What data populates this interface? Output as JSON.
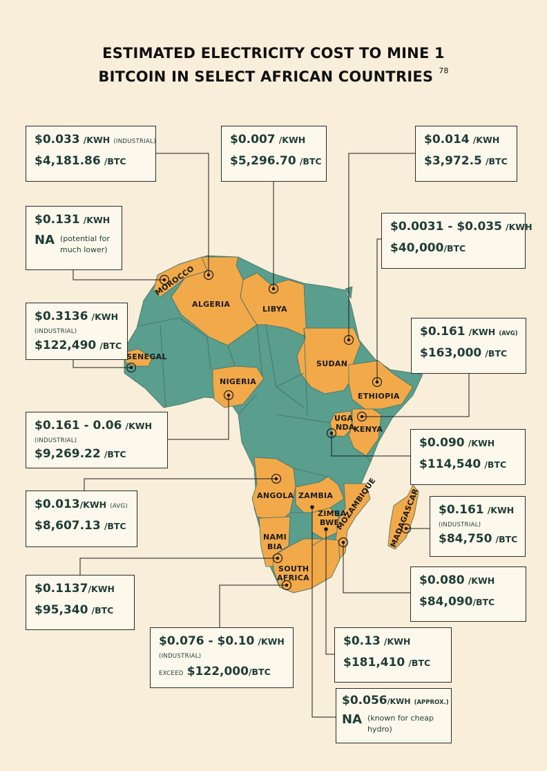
{
  "title": {
    "line1": "ESTIMATED ELECTRICITY COST TO MINE 1",
    "line2": "BITCOIN IN SELECT AFRICAN COUNTRIES",
    "footnote": "78"
  },
  "colors": {
    "background": "#f8eeda",
    "highlight": "#f2a94a",
    "other": "#5a9e8d",
    "box": "#fdf8ec"
  },
  "countries": {
    "morocco": "MOROCCO",
    "algeria": "ALGERIA",
    "libya": "LIBYA",
    "sudan": "SUDAN",
    "ethiopia": "ETHIOPIA",
    "senegal": "SENEGAL",
    "nigeria": "NIGERIA",
    "uganda_1": "UGA",
    "uganda_2": "NDA",
    "kenya": "KENYA",
    "angola": "ANGOLA",
    "zambia": "ZAMBIA",
    "zimbabwe_1": "ZIMBA",
    "zimbabwe_2": "BWE",
    "mozambique": "MOZAMBIQUE",
    "madagascar": "MADAGASCAR",
    "namibia_1": "NAMI",
    "namibia_2": "BIA",
    "south_africa_1": "SOUTH",
    "south_africa_2": "AFRICA"
  },
  "callouts": {
    "algeria": {
      "price": "$0.033",
      "unit": "/KWH",
      "qualifier": "(INDUSTRIAL)",
      "cost": "$4,181.86",
      "cost_unit": "/BTC"
    },
    "libya": {
      "price": "$0.007",
      "unit": "/KWH",
      "cost": "$5,296.70",
      "cost_unit": "/BTC"
    },
    "sudan": {
      "price": "$0.014",
      "unit": "/KWH",
      "cost": "$3,972.5",
      "cost_unit": "/BTC"
    },
    "morocco": {
      "price": "$0.131",
      "unit": "/KWH",
      "cost": "NA",
      "note": "(potential for much lower)"
    },
    "ethiopia": {
      "price": "$0.0031 - $0.035",
      "unit": "/KWH",
      "cost": "$40,000",
      "cost_unit": "/BTC"
    },
    "senegal": {
      "price": "$0.3136",
      "unit": "/KWH",
      "qualifier": "(INDUSTRIAL)",
      "cost": "$122,490",
      "cost_unit": "/BTC"
    },
    "kenya": {
      "price": "$0.161",
      "unit": "/KWH",
      "qualifier": "(AVG)",
      "cost": "$163,000",
      "cost_unit": "/BTC"
    },
    "nigeria": {
      "price": "$0.161 - 0.06",
      "unit": "/KWH",
      "qualifier": "(INDUSTRIAL)",
      "cost": "$9,269.22",
      "cost_unit": "/BTC"
    },
    "uganda": {
      "price": "$0.090",
      "unit": "/KWH",
      "cost": "$114,540",
      "cost_unit": "/BTC"
    },
    "angola": {
      "price": "$0.013",
      "unit": "/KWH",
      "qualifier": "(AVG)",
      "cost": "$8,607.13",
      "cost_unit": "/BTC"
    },
    "madagascar": {
      "price": "$0.161",
      "unit": "/KWH",
      "qualifier": "(INDUSTRIAL)",
      "cost": "$84,750",
      "cost_unit": "/BTC"
    },
    "namibia": {
      "price": "$0.1137",
      "unit": "/KWH",
      "cost": "$95,340",
      "cost_unit": "/BTC"
    },
    "mozambique": {
      "price": "$0.080",
      "unit": "/KWH",
      "cost": "$84,090",
      "cost_unit": "/BTC"
    },
    "south_africa": {
      "price": "$0.076 - $0.10",
      "unit": "/KWH",
      "qualifier": "(INDUSTRIAL)",
      "prefix": "EXCEED",
      "cost": "$122,000",
      "cost_unit": "/BTC"
    },
    "zimbabwe": {
      "price": "$0.13",
      "unit": "/KWH",
      "cost": "$181,410",
      "cost_unit": "/BTC"
    },
    "zambia": {
      "price": "$0.056",
      "unit": "/KWH",
      "qualifier": "(APPROX.)",
      "cost": "NA",
      "note": "(known for cheap hydro)"
    }
  }
}
